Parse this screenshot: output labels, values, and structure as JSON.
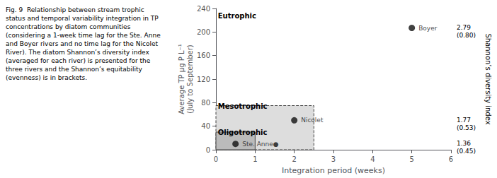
{
  "chart_data": {
    "type": "scatter",
    "caption": "Fig. 9  Relationship between stream trophic status and temporal variability integration in TP concentrations by diatom communities (considering a 1-week time lag for the Ste. Anne and Boyer rivers and no time lag for the Nicolet River). The diatom Shannon’s diversity index (averaged for each river) is presented for the three rivers and the Shannon’s equitability (evenness) is in brackets.",
    "xlabel": "Integration period (weeks)",
    "ylabel": "Average TP μg P L⁻¹\n(July to September)",
    "y2label": "Shannon’s diversity index",
    "x": [
      0.5,
      2.0,
      5.0
    ],
    "values": [
      10,
      50,
      207
    ],
    "point_labels": [
      "Ste. Anne●",
      "Nicolet",
      "Boyer"
    ],
    "color": "#111111",
    "xlim": [
      0,
      6
    ],
    "ylim": [
      0,
      240
    ],
    "xticks": [
      0,
      1,
      2,
      3,
      4,
      5,
      6
    ],
    "yticks": [
      0,
      40,
      80,
      120,
      160,
      200,
      240
    ],
    "grid": false,
    "regions": [
      {
        "xlim": [
          0,
          2.5
        ],
        "ylim": [
          0,
          75
        ],
        "color": "#dddddd",
        "edge_color": "#444444",
        "line_style": "dashed"
      },
      {
        "xlim": [
          0,
          1.0
        ],
        "ylim": [
          0,
          30
        ],
        "color": "#bbbbbb",
        "edge_color": "#444444",
        "line_style": "solid"
      }
    ],
    "annotations": [
      {
        "text": "Eutrophic",
        "x": 0.05,
        "y": 233
      },
      {
        "text": "Mesotrophic",
        "x": 0.05,
        "y": 80
      },
      {
        "text": "Oligotrophic",
        "x": 0.05,
        "y": 36
      }
    ],
    "right_labels": [
      {
        "y": 207,
        "lines": [
          "2.79",
          "(0.80)"
        ]
      },
      {
        "y": 50,
        "lines": [
          "1.77",
          "(0.53)"
        ]
      },
      {
        "y": 10,
        "lines": [
          "1.36",
          "(0.45)"
        ]
      }
    ]
  }
}
